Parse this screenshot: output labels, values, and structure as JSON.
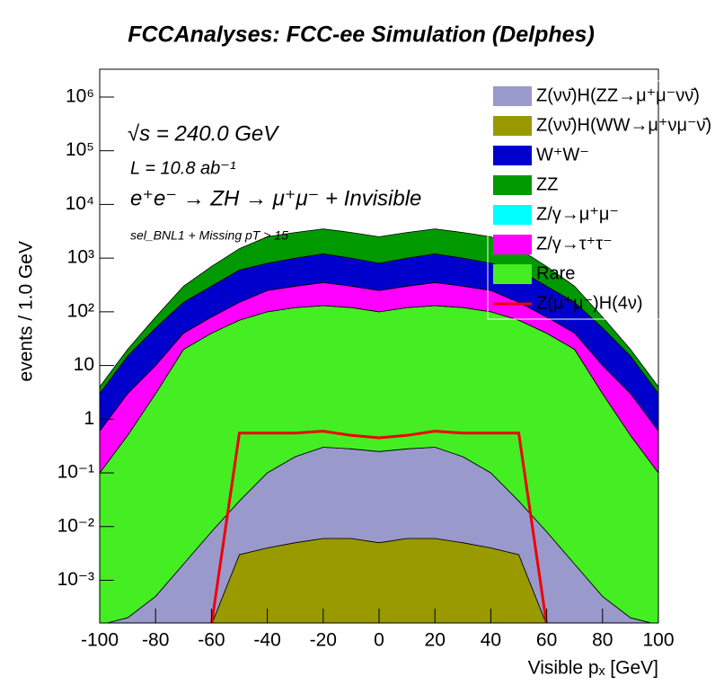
{
  "chart_data": {
    "type": "stacked_area",
    "title": "FCCAnalyses: FCC-ee Simulation (Delphes)",
    "annotations": [
      "√s = 240.0 GeV",
      "L = 10.8 ab⁻¹",
      "e⁺e⁻ → ZH → μ⁺μ⁻ + Invisible",
      "sel_BNL1 + Missing pT > 15"
    ],
    "x_label": "Visible pₓ [GeV]",
    "y_label": "events / 1.0 GeV",
    "log_y": true,
    "legend": "upper right",
    "x": [
      -100,
      -90,
      -80,
      -70,
      -60,
      -50,
      -40,
      -30,
      -20,
      -10,
      0,
      10,
      20,
      30,
      40,
      50,
      60,
      70,
      80,
      90,
      100
    ],
    "series": [
      {
        "name": "Z(νν̄)H(WW→μ⁺νμ⁻ν̄)",
        "color": "#999900",
        "stacked": true,
        "values": [
          0,
          0,
          0,
          0,
          0,
          0.003,
          0.004,
          0.005,
          0.006,
          0.006,
          0.005,
          0.006,
          0.006,
          0.005,
          0.004,
          0.003,
          0,
          0,
          0,
          0,
          0
        ]
      },
      {
        "name": "Z(νν̄)H(ZZ→μ⁺μ⁻νν̄)",
        "color": "#9999cc",
        "stacked": true,
        "values": [
          0.0001,
          0.0002,
          0.0005,
          0.002,
          0.008,
          0.027,
          0.096,
          0.195,
          0.294,
          0.274,
          0.245,
          0.274,
          0.294,
          0.195,
          0.096,
          0.027,
          0.008,
          0.002,
          0.0005,
          0.0002,
          0.0001
        ]
      },
      {
        "name": "Rare",
        "color": "#44ee22",
        "stacked": true,
        "values": [
          0.1,
          0.5,
          3,
          20,
          40,
          70,
          100,
          120,
          130,
          120,
          100,
          120,
          130,
          120,
          100,
          70,
          40,
          20,
          3,
          0.5,
          0.1
        ]
      },
      {
        "name": "Z/γ→μ⁺μ⁻",
        "color": "#00ffff",
        "stacked": true,
        "values": [
          0,
          0,
          0,
          0,
          0,
          0,
          0,
          0,
          0,
          0,
          0,
          0,
          0,
          0,
          0,
          0,
          0,
          0,
          0,
          0,
          0
        ]
      },
      {
        "name": "Z/γ→τ⁺τ⁻",
        "color": "#ff00ff",
        "stacked": true,
        "values": [
          0.5,
          2.5,
          7,
          20,
          40,
          80,
          150,
          180,
          220,
          180,
          150,
          180,
          220,
          180,
          150,
          80,
          40,
          20,
          7,
          2.5,
          0.5
        ]
      },
      {
        "name": "W⁺W⁻",
        "color": "#0000cc",
        "stacked": true,
        "values": [
          2.4,
          12,
          40,
          110,
          220,
          450,
          550,
          700,
          850,
          700,
          550,
          700,
          850,
          700,
          550,
          450,
          220,
          110,
          40,
          12,
          2.4
        ]
      },
      {
        "name": "ZZ",
        "color": "#009900",
        "stacked": true,
        "values": [
          1,
          5,
          30,
          150,
          400,
          900,
          1700,
          2000,
          2300,
          2000,
          1700,
          2000,
          2300,
          2000,
          1700,
          900,
          400,
          150,
          30,
          5,
          1
        ]
      },
      {
        "name": "Z(μ⁺μ⁻)H(4ν)",
        "color": "#ee0000",
        "stacked": false,
        "values": [
          0,
          0,
          0,
          0,
          0,
          0.55,
          0.55,
          0.55,
          0.6,
          0.5,
          0.45,
          0.5,
          0.6,
          0.55,
          0.55,
          0.55,
          0,
          0,
          0,
          0,
          0
        ]
      }
    ],
    "xlim": [
      -100,
      100
    ],
    "xticks": [
      -100,
      -80,
      -60,
      -40,
      -20,
      0,
      20,
      40,
      60,
      80,
      100
    ],
    "ylim": [
      0.00016,
      3300000
    ],
    "yticks": [
      {
        "value": 0.001,
        "label": "10⁻³"
      },
      {
        "value": 0.01,
        "label": "10⁻²"
      },
      {
        "value": 0.1,
        "label": "10⁻¹"
      },
      1,
      10,
      {
        "value": 100,
        "label": "10²"
      },
      {
        "value": 1000,
        "label": "10³"
      },
      {
        "value": 10000,
        "label": "10⁴"
      },
      {
        "value": 100000,
        "label": "10⁵"
      },
      {
        "value": 1000000,
        "label": "10⁶"
      }
    ]
  }
}
